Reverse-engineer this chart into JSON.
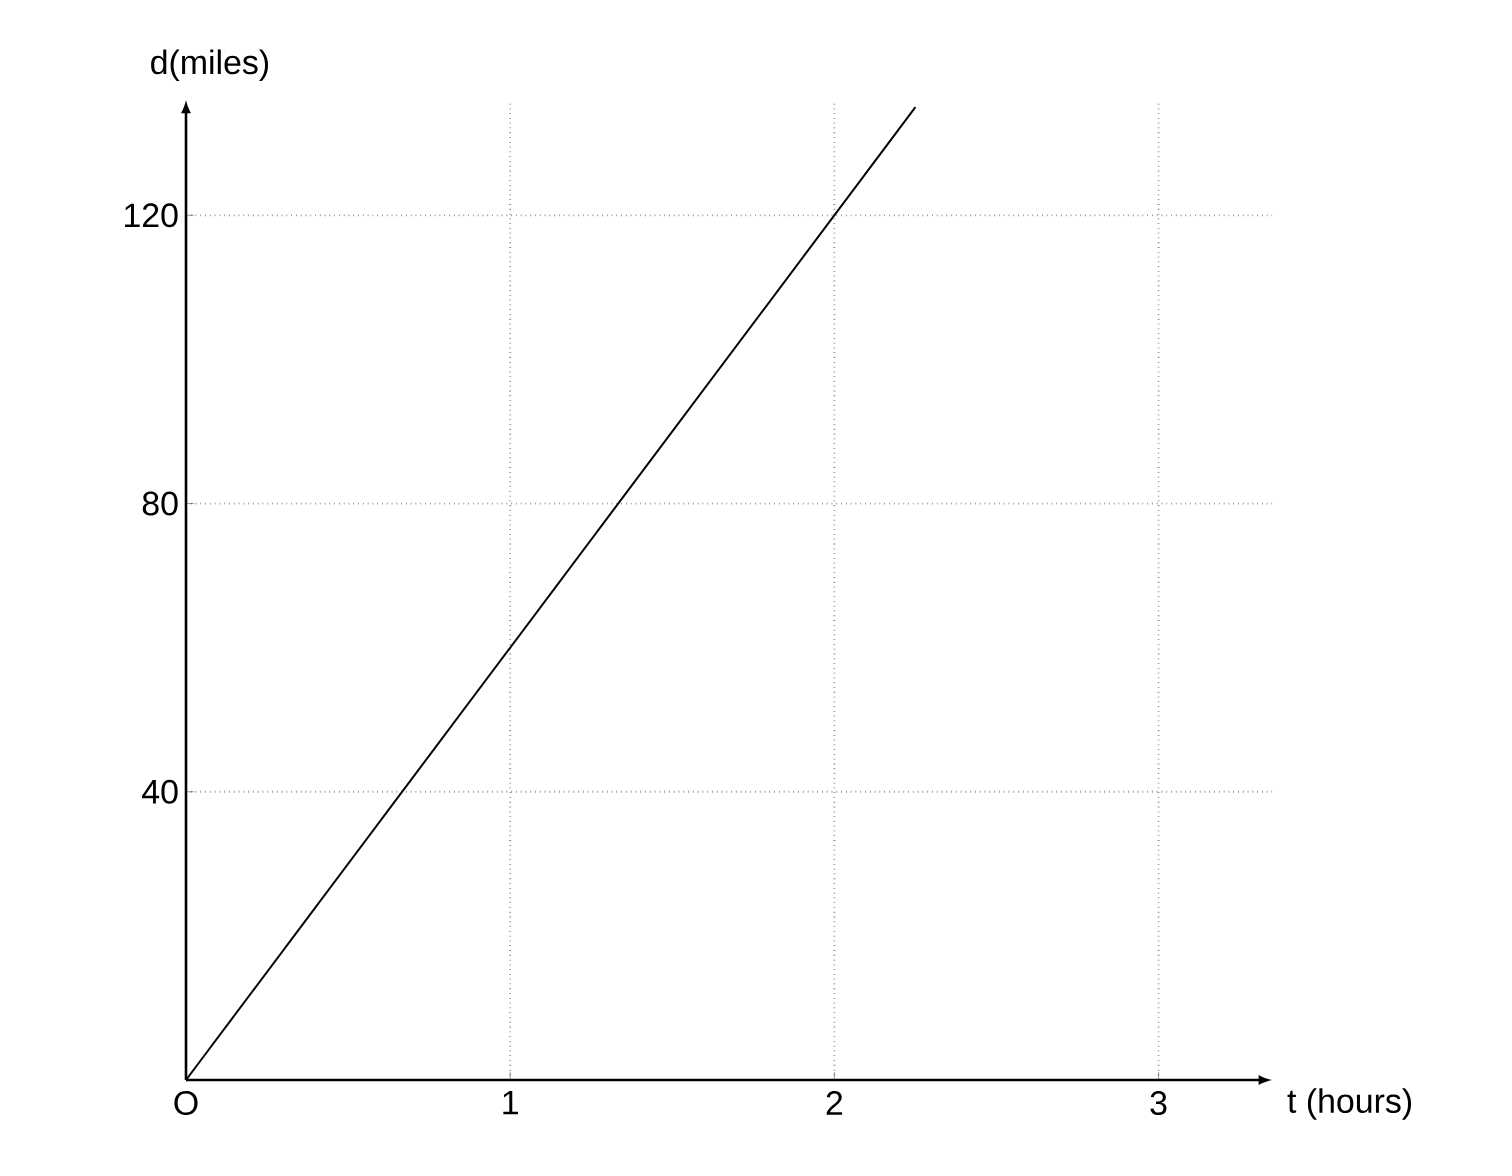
{
  "chart_data": {
    "type": "line",
    "xlabel": "t (hours)",
    "ylabel": "d(miles)",
    "x": [
      0,
      2.25
    ],
    "series": [
      {
        "color": "#000000",
        "values": [
          0,
          135
        ]
      }
    ],
    "xlim": [
      0,
      3.35
    ],
    "ylim": [
      0,
      136
    ],
    "xticks": [
      {
        "value": 0,
        "label": "O"
      },
      1,
      2,
      3
    ],
    "yticks": [
      40,
      80,
      120
    ],
    "grid": true,
    "marker": "none",
    "line_style": "solid"
  }
}
